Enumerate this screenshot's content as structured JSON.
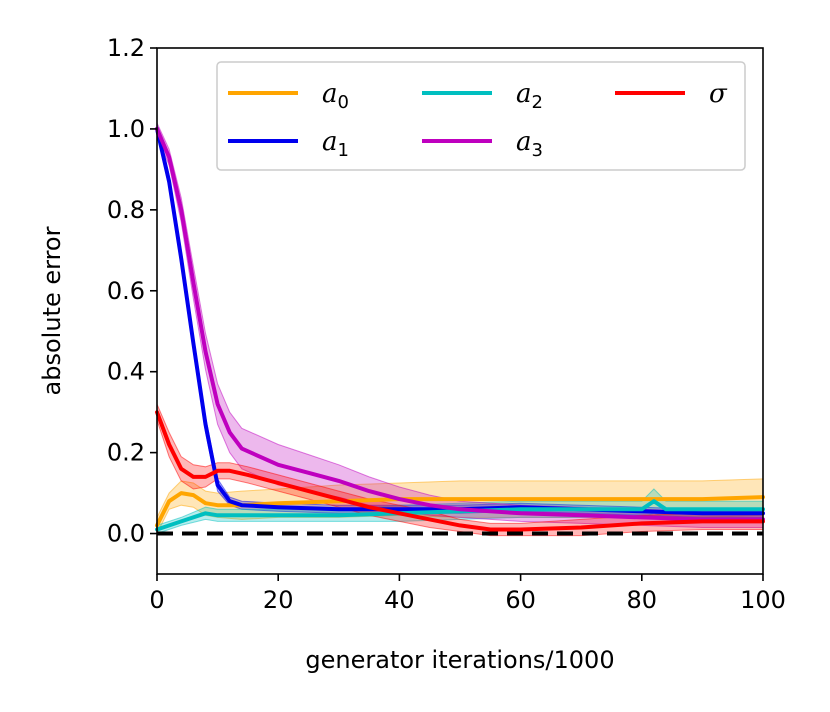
{
  "chart_data": {
    "type": "line",
    "title": "",
    "xlabel": "generator iterations/1000",
    "ylabel": "absolute error",
    "xlim": [
      0,
      100
    ],
    "ylim": [
      -0.1,
      1.2
    ],
    "xticks": [
      0,
      20,
      40,
      60,
      80,
      100
    ],
    "yticks": [
      0.0,
      0.2,
      0.4,
      0.6,
      0.8,
      1.0,
      1.2
    ],
    "grid": false,
    "legend": {
      "placement": "top-right",
      "columns": 3
    },
    "reference_line": {
      "y": 0.0,
      "style": "dashed",
      "color": "#000000"
    },
    "series": [
      {
        "name": "a",
        "subscript": "0",
        "color": "#FFA500",
        "x": [
          0,
          2,
          4,
          6,
          8,
          10,
          14,
          20,
          30,
          40,
          50,
          60,
          70,
          80,
          90,
          100
        ],
        "y": [
          0.02,
          0.08,
          0.1,
          0.095,
          0.075,
          0.07,
          0.07,
          0.075,
          0.08,
          0.085,
          0.085,
          0.085,
          0.085,
          0.085,
          0.085,
          0.09
        ],
        "band": [
          0.02,
          0.02,
          0.03,
          0.03,
          0.03,
          0.03,
          0.035,
          0.035,
          0.04,
          0.04,
          0.045,
          0.045,
          0.045,
          0.045,
          0.045,
          0.045
        ]
      },
      {
        "name": "a",
        "subscript": "1",
        "color": "#0000EE",
        "x": [
          0,
          2,
          4,
          6,
          8,
          10,
          12,
          14,
          20,
          30,
          40,
          50,
          60,
          70,
          80,
          90,
          100
        ],
        "y": [
          1.0,
          0.87,
          0.68,
          0.47,
          0.27,
          0.12,
          0.08,
          0.07,
          0.065,
          0.06,
          0.06,
          0.06,
          0.065,
          0.06,
          0.055,
          0.05,
          0.05
        ],
        "band": [
          0.01,
          0.015,
          0.02,
          0.02,
          0.02,
          0.015,
          0.01,
          0.01,
          0.01,
          0.01,
          0.01,
          0.01,
          0.01,
          0.01,
          0.01,
          0.01,
          0.01
        ]
      },
      {
        "name": "a",
        "subscript": "2",
        "color": "#00BFC0",
        "x": [
          0,
          4,
          8,
          10,
          20,
          30,
          40,
          50,
          60,
          70,
          80,
          82,
          84,
          90,
          100
        ],
        "y": [
          0.01,
          0.03,
          0.05,
          0.045,
          0.045,
          0.045,
          0.05,
          0.055,
          0.06,
          0.06,
          0.06,
          0.08,
          0.06,
          0.06,
          0.06
        ],
        "band": [
          0.01,
          0.01,
          0.015,
          0.015,
          0.015,
          0.015,
          0.02,
          0.02,
          0.02,
          0.02,
          0.02,
          0.03,
          0.02,
          0.02,
          0.02
        ]
      },
      {
        "name": "a",
        "subscript": "3",
        "color": "#BF00BF",
        "x": [
          0,
          2,
          4,
          6,
          8,
          10,
          12,
          14,
          20,
          25,
          30,
          35,
          40,
          45,
          50,
          60,
          70,
          80,
          90,
          100
        ],
        "y": [
          1.0,
          0.93,
          0.8,
          0.62,
          0.45,
          0.32,
          0.25,
          0.21,
          0.17,
          0.15,
          0.13,
          0.105,
          0.085,
          0.07,
          0.06,
          0.05,
          0.045,
          0.04,
          0.035,
          0.035
        ],
        "band": [
          0.015,
          0.02,
          0.03,
          0.04,
          0.045,
          0.05,
          0.05,
          0.05,
          0.05,
          0.045,
          0.04,
          0.035,
          0.03,
          0.025,
          0.02,
          0.02,
          0.02,
          0.02,
          0.02,
          0.02
        ]
      },
      {
        "name": "σ",
        "subscript": "",
        "color": "#FF0000",
        "x": [
          0,
          2,
          4,
          6,
          8,
          10,
          12,
          15,
          20,
          25,
          30,
          35,
          40,
          45,
          50,
          55,
          60,
          70,
          80,
          90,
          100
        ],
        "y": [
          0.3,
          0.22,
          0.16,
          0.14,
          0.14,
          0.155,
          0.155,
          0.145,
          0.125,
          0.105,
          0.085,
          0.065,
          0.05,
          0.035,
          0.02,
          0.01,
          0.01,
          0.015,
          0.025,
          0.03,
          0.03
        ],
        "band": [
          0.02,
          0.03,
          0.03,
          0.03,
          0.025,
          0.02,
          0.02,
          0.02,
          0.02,
          0.02,
          0.02,
          0.02,
          0.02,
          0.02,
          0.015,
          0.015,
          0.015,
          0.02,
          0.02,
          0.02,
          0.02
        ]
      }
    ]
  }
}
